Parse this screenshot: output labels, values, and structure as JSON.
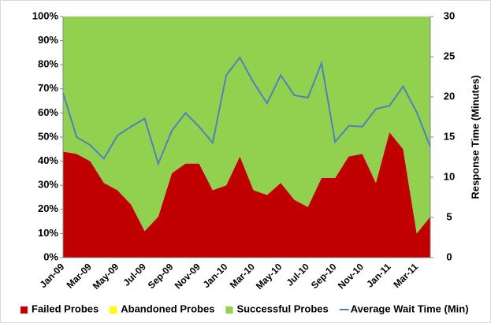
{
  "chart_data": {
    "type": "stacked_area_line",
    "categories": [
      "Jan-09",
      null,
      "Mar-09",
      null,
      "May-09",
      null,
      "Jul-09",
      null,
      "Sep-09",
      null,
      "Nov-09",
      null,
      "Jan-10",
      null,
      "Mar-10",
      null,
      "May-10",
      null,
      "Jul-10",
      null,
      "Sep-10",
      null,
      "Nov-10",
      null,
      "Jan-11",
      null,
      "Mar-11",
      null
    ],
    "series": [
      {
        "name": "Failed Probes",
        "color": "#c00000",
        "kind": "area",
        "values": [
          44,
          43,
          40,
          31,
          28,
          22,
          11,
          17,
          35,
          39,
          39,
          28,
          30,
          42,
          28,
          26,
          31,
          24,
          21,
          33,
          33,
          42,
          43,
          31,
          52,
          45,
          10,
          17
        ]
      },
      {
        "name": "Abandoned Probes",
        "color": "#ffff00",
        "kind": "area",
        "values": [
          0,
          0,
          0,
          0,
          0,
          0,
          0,
          0,
          0,
          0,
          0,
          0,
          0,
          0,
          0,
          0,
          0,
          0,
          0,
          0,
          0,
          0,
          0,
          0,
          0,
          0,
          0,
          0
        ]
      },
      {
        "name": "Successful Probes",
        "color": "#92d050",
        "kind": "area",
        "values": [
          56,
          57,
          60,
          69,
          72,
          78,
          89,
          83,
          65,
          61,
          61,
          72,
          70,
          58,
          72,
          74,
          69,
          76,
          79,
          67,
          67,
          58,
          57,
          69,
          48,
          55,
          90,
          83
        ]
      },
      {
        "name": "Average Wait Time (Min)",
        "color": "#4f81bd",
        "kind": "line",
        "axis": "y2",
        "values": [
          20.5,
          15,
          14,
          12.3,
          15.2,
          16.3,
          17.3,
          11.7,
          15.8,
          18,
          16.3,
          14.3,
          22.7,
          24.9,
          21.8,
          19.2,
          22.7,
          20.2,
          19.9,
          24.2,
          14.4,
          16.4,
          16.3,
          18.5,
          18.9,
          21.3,
          18.1,
          13.8
        ]
      }
    ],
    "ylim": [
      0,
      100
    ],
    "yticks": [
      {
        "value": 0,
        "label": "0%"
      },
      {
        "value": 10,
        "label": "10%"
      },
      {
        "value": 20,
        "label": "20%"
      },
      {
        "value": 30,
        "label": "30%"
      },
      {
        "value": 40,
        "label": "40%"
      },
      {
        "value": 50,
        "label": "50%"
      },
      {
        "value": 60,
        "label": "60%"
      },
      {
        "value": 70,
        "label": "70%"
      },
      {
        "value": 80,
        "label": "80%"
      },
      {
        "value": 90,
        "label": "90%"
      },
      {
        "value": 100,
        "label": "100%"
      }
    ],
    "y2lim": [
      0,
      30
    ],
    "y2ticks": [
      0,
      5,
      10,
      15,
      20,
      25,
      30
    ],
    "y2label": "Response Time (Minutes)",
    "legend": "bottom"
  }
}
